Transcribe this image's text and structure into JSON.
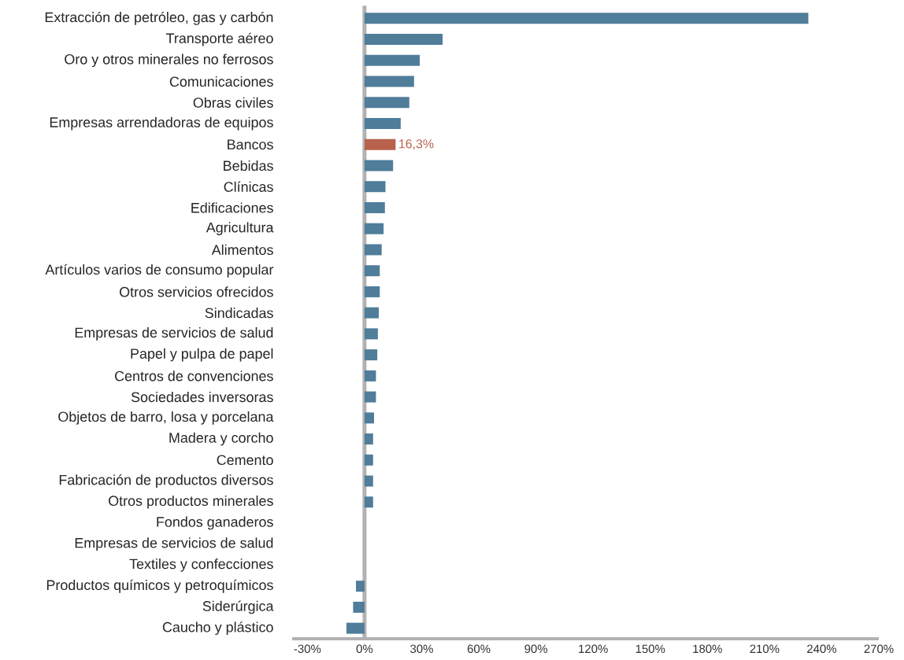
{
  "chart_data": {
    "type": "bar",
    "orientation": "horizontal",
    "categories": [
      "Extracción de petróleo, gas y carbón",
      "Transporte aéreo",
      "Oro y otros minerales no ferrosos",
      "Comunicaciones",
      "Obras civiles",
      "Empresas arrendadoras de equipos",
      "Bancos",
      "Bebidas",
      "Clínicas",
      "Edificaciones",
      "Agricultura",
      "Alimentos",
      "Artículos varios de consumo popular",
      "Otros servicios ofrecidos",
      "Sindicadas",
      "Empresas de servicios de salud",
      "Papel y pulpa de papel",
      "Centros de convenciones",
      "Sociedades inversoras",
      "Objetos de barro, losa y porcelana",
      "Madera y corcho",
      "Cemento",
      "Fabricación de productos diversos",
      "Otros productos minerales",
      "Fondos ganaderos",
      "Empresas de servicios de salud",
      "Textiles y confecciones",
      "Productos químicos y petroquímicos",
      "Siderúrgica",
      "Caucho y plástico"
    ],
    "values": [
      233,
      41,
      29,
      26,
      23.5,
      19,
      16.3,
      15,
      11,
      10.7,
      10,
      9,
      8,
      8,
      7.5,
      7,
      6.7,
      6,
      6,
      5,
      4.5,
      4.5,
      4.5,
      4.5,
      0,
      0,
      0,
      -4.5,
      -6,
      -9.5
    ],
    "colors": [
      "#4f7d9a",
      "#4f7d9a",
      "#4f7d9a",
      "#4f7d9a",
      "#4f7d9a",
      "#4f7d9a",
      "#b8614c",
      "#4f7d9a",
      "#4f7d9a",
      "#4f7d9a",
      "#4f7d9a",
      "#4f7d9a",
      "#4f7d9a",
      "#4f7d9a",
      "#4f7d9a",
      "#4f7d9a",
      "#4f7d9a",
      "#4f7d9a",
      "#4f7d9a",
      "#4f7d9a",
      "#4f7d9a",
      "#4f7d9a",
      "#4f7d9a",
      "#4f7d9a",
      "#4f7d9a",
      "#4f7d9a",
      "#4f7d9a",
      "#4f7d9a",
      "#4f7d9a",
      "#4f7d9a"
    ],
    "value_labels": [
      null,
      null,
      null,
      null,
      null,
      null,
      "16,3%",
      null,
      null,
      null,
      null,
      null,
      null,
      null,
      null,
      null,
      null,
      null,
      null,
      null,
      null,
      null,
      null,
      null,
      null,
      null,
      null,
      null,
      null,
      null
    ],
    "xlim": [
      -38,
      270
    ],
    "xticks": [
      {
        "value": -30,
        "label": "-30%"
      },
      {
        "value": 0,
        "label": "0%"
      },
      {
        "value": 30,
        "label": "30%"
      },
      {
        "value": 60,
        "label": "60%"
      },
      {
        "value": 90,
        "label": "90%"
      },
      {
        "value": 120,
        "label": "120%"
      },
      {
        "value": 150,
        "label": "150%"
      },
      {
        "value": 180,
        "label": "180%"
      },
      {
        "value": 210,
        "label": "210%"
      },
      {
        "value": 240,
        "label": "240%"
      },
      {
        "value": 270,
        "label": "270%"
      }
    ]
  }
}
